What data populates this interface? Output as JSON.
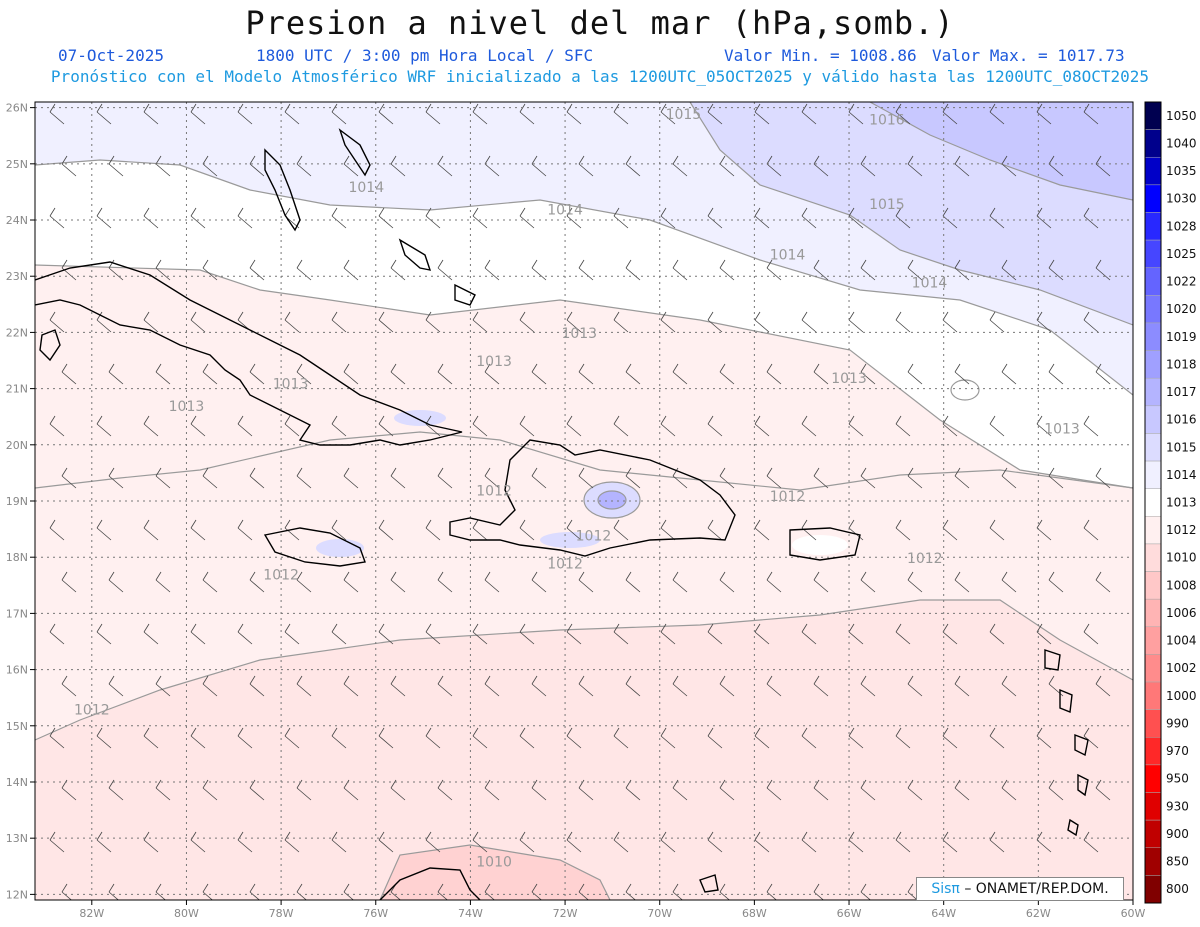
{
  "title": "Presion a nivel del mar (hPa,somb.)",
  "date": "07-Oct-2025",
  "time_info": "1800 UTC / 3:00 pm Hora Local / SFC",
  "min_label": "Valor Min. = 1008.86",
  "max_label": "Valor Max. = 1017.73",
  "model_info": "Pronóstico con el Modelo Atmosférico WRF inicializado a las 1200UTC_05OCT2025 y válido hasta las  1200UTC_08OCT2025",
  "credit": {
    "brand": "Sisπ",
    "org": "– ONAMET/REP.DOM."
  },
  "lat_labels": [
    "26N",
    "25N",
    "24N",
    "23N",
    "22N",
    "21N",
    "20N",
    "19N",
    "18N",
    "17N",
    "16N",
    "15N",
    "14N",
    "13N",
    "12N"
  ],
  "lon_labels": [
    "82W",
    "80W",
    "78W",
    "76W",
    "74W",
    "72W",
    "70W",
    "68W",
    "66W",
    "64W",
    "62W",
    "60W"
  ],
  "colorbar": {
    "labels": [
      "1050",
      "1040",
      "1035",
      "1030",
      "1028",
      "1025",
      "1022",
      "1020",
      "1019",
      "1018",
      "1017",
      "1016",
      "1015",
      "1014",
      "1013",
      "1012",
      "1010",
      "1008",
      "1006",
      "1004",
      "1002",
      "1000",
      "990",
      "970",
      "950",
      "930",
      "900",
      "850",
      "800"
    ],
    "colors": [
      "#000050",
      "#00008c",
      "#0000c8",
      "#0000ff",
      "#2828ff",
      "#4646ff",
      "#6464ff",
      "#7878ff",
      "#8c8cff",
      "#a0a0ff",
      "#b4b4ff",
      "#c8c8ff",
      "#dcdcff",
      "#f0f0ff",
      "#ffffff",
      "#fff0f0",
      "#ffdcdc",
      "#ffc8c8",
      "#ffb4b4",
      "#ffa0a0",
      "#ff8c8c",
      "#ff7878",
      "#ff5050",
      "#ff2828",
      "#ff0000",
      "#e00000",
      "#c00000",
      "#a00000",
      "#800000"
    ]
  },
  "contour_labels": [
    {
      "text": "1015",
      "lon": -69.5,
      "lat": 25.8
    },
    {
      "text": "1016",
      "lon": -65.2,
      "lat": 25.7
    },
    {
      "text": "1014",
      "lon": -76.2,
      "lat": 24.5
    },
    {
      "text": "1014",
      "lon": -72.0,
      "lat": 24.1
    },
    {
      "text": "1015",
      "lon": -65.2,
      "lat": 24.2
    },
    {
      "text": "1014",
      "lon": -67.3,
      "lat": 23.3
    },
    {
      "text": "1014",
      "lon": -64.3,
      "lat": 22.8
    },
    {
      "text": "1013",
      "lon": -71.7,
      "lat": 21.9
    },
    {
      "text": "1013",
      "lon": -73.5,
      "lat": 21.4
    },
    {
      "text": "1013",
      "lon": -77.8,
      "lat": 21.0
    },
    {
      "text": "1013",
      "lon": -80.0,
      "lat": 20.6
    },
    {
      "text": "1013",
      "lon": -66.0,
      "lat": 21.1
    },
    {
      "text": "1013",
      "lon": -61.5,
      "lat": 20.2
    },
    {
      "text": "1012",
      "lon": -73.5,
      "lat": 19.1
    },
    {
      "text": "1012",
      "lon": -67.3,
      "lat": 19.0
    },
    {
      "text": "1012",
      "lon": -71.4,
      "lat": 18.3
    },
    {
      "text": "1012",
      "lon": -72.0,
      "lat": 17.8
    },
    {
      "text": "1012",
      "lon": -78.0,
      "lat": 17.6
    },
    {
      "text": "1012",
      "lon": -64.4,
      "lat": 17.9
    },
    {
      "text": "1012",
      "lon": -82.0,
      "lat": 15.2
    },
    {
      "text": "1010",
      "lon": -73.5,
      "lat": 12.5
    }
  ]
}
